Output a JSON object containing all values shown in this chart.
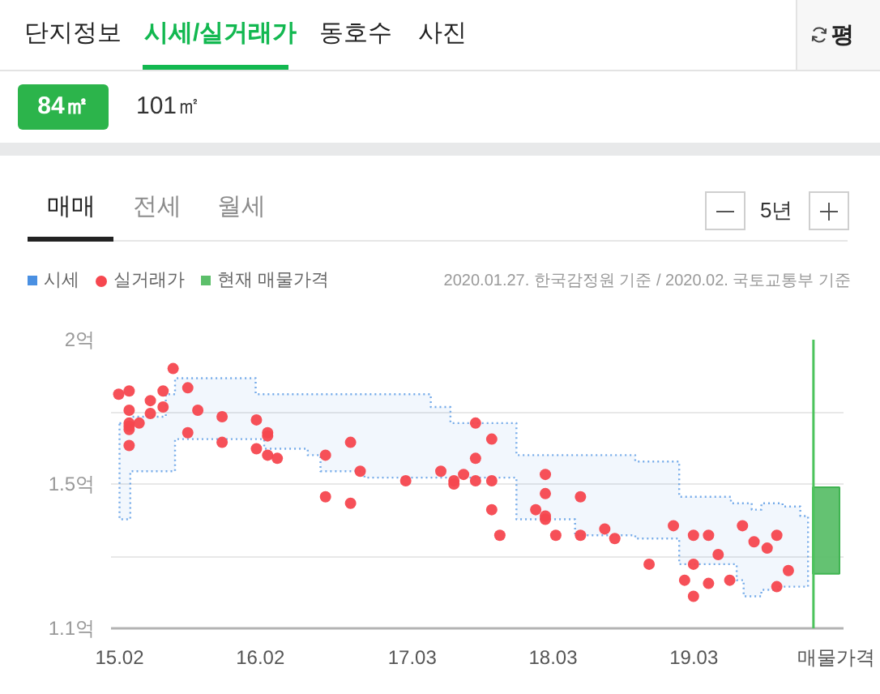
{
  "chart_data": {
    "type": "scatter",
    "annotations": [
      "단지정보",
      "시세/실거래가",
      "동호수",
      "사진",
      "평",
      "84㎡",
      "101㎡",
      "매매",
      "전세",
      "월세",
      "5년",
      "2020.01.27. 한국감정원 기준 / 2020.02. 국토교통부 기준"
    ],
    "series": [
      {
        "name": "시세",
        "type": "step",
        "color": "#4a90e2",
        "x": [
          "2015-02-01",
          "2015-03-01",
          "2015-06-01",
          "2015-06-25",
          "2016-01-20",
          "2016-02-11",
          "2016-06-03",
          "2016-07-06",
          "2016-10-28",
          "2017-04-18",
          "2017-06-08",
          "2017-11-26",
          "2018-04-27",
          "2018-09-30",
          "2019-01-22",
          "2019-06-05",
          "2019-06-20",
          "2019-07-08",
          "2019-07-29",
          "2019-08-23",
          "2019-10-09",
          "2019-10-17",
          "2019-12-02",
          "2019-12-22"
        ],
        "values": [
          null,
          null,
          null,
          null,
          null,
          null,
          null,
          null,
          null,
          null,
          null,
          null,
          null,
          null,
          null,
          null,
          null,
          null,
          null,
          null,
          null,
          null,
          null,
          null
        ],
        "upper": [
          1.74,
          1.76,
          1.83,
          1.88,
          1.83,
          1.83,
          1.83,
          1.83,
          1.83,
          1.79,
          1.74,
          1.64,
          1.64,
          1.62,
          1.51,
          1.49,
          1.49,
          1.49,
          1.47,
          1.49,
          1.49,
          1.48,
          1.45,
          1.45
        ],
        "lower": [
          1.44,
          1.59,
          1.59,
          1.69,
          1.69,
          1.66,
          1.64,
          1.59,
          1.57,
          1.57,
          1.57,
          1.44,
          1.39,
          1.38,
          1.3,
          1.3,
          1.25,
          1.2,
          1.2,
          1.22,
          1.23,
          1.23,
          1.23,
          1.23
        ]
      },
      {
        "name": "실거래가",
        "color": "#f6474f",
        "x": [
          "2015-01-30",
          "2015-02-26",
          "2015-02-26",
          "2015-02-26",
          "2015-02-26",
          "2015-02-26",
          "2015-02-26",
          "2015-03-24",
          "2015-04-22",
          "2015-04-22",
          "2015-05-25",
          "2015-05-25",
          "2015-06-20",
          "2015-07-28",
          "2015-07-28",
          "2015-08-23",
          "2015-10-25",
          "2015-10-25",
          "2016-01-22",
          "2016-01-22",
          "2016-02-20",
          "2016-02-20",
          "2016-02-20",
          "2016-03-16",
          "2016-07-19",
          "2016-07-19",
          "2016-09-22",
          "2016-09-22",
          "2016-10-17",
          "2017-02-12",
          "2017-05-14",
          "2017-06-17",
          "2017-06-17",
          "2017-07-12",
          "2017-08-12",
          "2017-08-12",
          "2017-08-12",
          "2017-09-23",
          "2017-09-23",
          "2017-09-23",
          "2017-10-14",
          "2018-01-15",
          "2018-02-09",
          "2018-02-09",
          "2018-02-09",
          "2018-02-09",
          "2018-03-08",
          "2018-05-11",
          "2018-05-11",
          "2018-07-13",
          "2018-08-08",
          "2018-11-05",
          "2019-01-07",
          "2019-02-05",
          "2019-02-28",
          "2019-02-28",
          "2019-02-28",
          "2019-04-08",
          "2019-04-08",
          "2019-05-03",
          "2019-06-02",
          "2019-07-05",
          "2019-08-04",
          "2019-09-07",
          "2019-10-02",
          "2019-10-02",
          "2019-11-01"
        ],
        "values": [
          1.83,
          1.84,
          1.78,
          1.74,
          1.73,
          1.72,
          1.67,
          1.74,
          1.81,
          1.77,
          1.84,
          1.79,
          1.91,
          1.85,
          1.71,
          1.78,
          1.76,
          1.68,
          1.75,
          1.66,
          1.71,
          1.7,
          1.64,
          1.63,
          1.64,
          1.51,
          1.68,
          1.49,
          1.59,
          1.56,
          1.59,
          1.56,
          1.55,
          1.58,
          1.74,
          1.63,
          1.56,
          1.69,
          1.56,
          1.47,
          1.39,
          1.47,
          1.58,
          1.52,
          1.45,
          1.44,
          1.39,
          1.51,
          1.39,
          1.41,
          1.38,
          1.3,
          1.42,
          1.25,
          1.39,
          1.3,
          1.2,
          1.39,
          1.24,
          1.33,
          1.25,
          1.42,
          1.37,
          1.35,
          1.39,
          1.23,
          1.28
        ]
      },
      {
        "name": "현재 매물가격",
        "type": "bar",
        "color": "#5cbf6a",
        "x": [
          "2020-02-07"
        ],
        "base": [
          1.27
        ],
        "values": [
          0.27
        ]
      }
    ],
    "xlim": [
      "2015-01-10",
      "2020-03-23"
    ],
    "xticks": [
      {
        "value": "2015-02",
        "label": "15.02"
      },
      {
        "value": "2016-02",
        "label": "16.02"
      },
      {
        "value": "2017-03",
        "label": "17.03"
      },
      {
        "value": "2018-03",
        "label": "18.03"
      },
      {
        "value": "2019-03",
        "label": "19.03"
      },
      {
        "value": "2020-03-05",
        "label": "매물가격"
      }
    ],
    "ylim": [
      1.1,
      2.0
    ],
    "yticks": [
      {
        "value": 2.0,
        "label": "2억"
      },
      {
        "value": 1.775,
        "label": null
      },
      {
        "value": 1.55,
        "label": "1.5억"
      },
      {
        "value": 1.325,
        "label": null
      },
      {
        "value": 1.1,
        "label": "1.1억"
      }
    ],
    "ref_lines": [
      {
        "axis": "x",
        "value": "2020-01-05",
        "color": "#4cc35c"
      }
    ],
    "grid": "y",
    "legend": "top left",
    "marker": "circle",
    "line_style": "dotted"
  }
}
